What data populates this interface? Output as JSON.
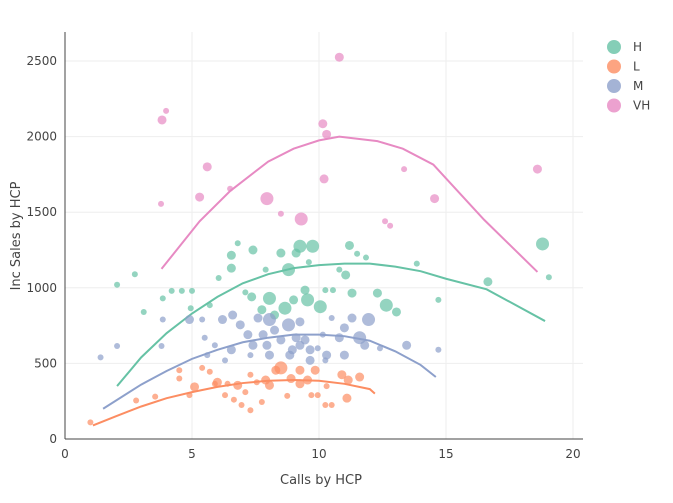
{
  "chart_data": {
    "type": "scatter",
    "xlabel": "Calls by HCP",
    "ylabel": "Inc Sales by HCP",
    "xlim": [
      0,
      20.4
    ],
    "ylim": [
      0,
      2700
    ],
    "xticks": [
      0,
      5,
      10,
      15,
      20
    ],
    "yticks": [
      0,
      500,
      1000,
      1500,
      2000,
      2500
    ],
    "grid": true,
    "legend_position": "top-right",
    "series": [
      {
        "name": "H",
        "color": "#66c2a5",
        "points": [
          [
            2.05,
            1020,
            1
          ],
          [
            2.75,
            1090,
            1
          ],
          [
            3.1,
            840,
            1
          ],
          [
            3.85,
            930,
            1
          ],
          [
            4.2,
            980,
            1
          ],
          [
            4.6,
            980,
            1
          ],
          [
            4.95,
            865,
            1
          ],
          [
            5,
            980,
            1
          ],
          [
            5.7,
            885,
            1
          ],
          [
            6.05,
            1065,
            1
          ],
          [
            6.55,
            1215,
            2
          ],
          [
            6.55,
            1130,
            2
          ],
          [
            6.8,
            1295,
            1
          ],
          [
            7.1,
            970,
            1
          ],
          [
            7.4,
            1250,
            2
          ],
          [
            7.35,
            940,
            2
          ],
          [
            7.9,
            1120,
            1
          ],
          [
            8.05,
            930,
            3
          ],
          [
            8.5,
            1230,
            2
          ],
          [
            8.8,
            1120,
            3
          ],
          [
            9.1,
            1230,
            2
          ],
          [
            9.25,
            1275,
            3
          ],
          [
            9.6,
            1170,
            1
          ],
          [
            9.75,
            1275,
            3
          ],
          [
            9.45,
            985,
            2
          ],
          [
            9.55,
            920,
            3
          ],
          [
            8.66,
            865,
            3
          ],
          [
            9,
            920,
            2
          ],
          [
            10.05,
            875,
            3
          ],
          [
            10.25,
            985,
            1
          ],
          [
            10.55,
            985,
            1
          ],
          [
            10.8,
            1120,
            1
          ],
          [
            11.05,
            1085,
            2
          ],
          [
            11.2,
            1280,
            2
          ],
          [
            11.3,
            965,
            2
          ],
          [
            11.5,
            1225,
            1
          ],
          [
            11.85,
            1200,
            1
          ],
          [
            12.3,
            965,
            2
          ],
          [
            12.65,
            885,
            3
          ],
          [
            13.05,
            840,
            2
          ],
          [
            13.85,
            1160,
            1
          ],
          [
            14.7,
            920,
            1
          ],
          [
            16.65,
            1040,
            2
          ],
          [
            18.8,
            1290,
            3
          ],
          [
            19.05,
            1070,
            1
          ],
          [
            7.75,
            855,
            2
          ],
          [
            8.25,
            820,
            2
          ]
        ],
        "fit": [
          [
            2.05,
            350
          ],
          [
            3,
            540
          ],
          [
            4,
            700
          ],
          [
            5,
            830
          ],
          [
            6,
            940
          ],
          [
            7,
            1030
          ],
          [
            8,
            1090
          ],
          [
            9,
            1130
          ],
          [
            10,
            1150
          ],
          [
            11,
            1160
          ],
          [
            12,
            1160
          ],
          [
            13,
            1140
          ],
          [
            14,
            1110
          ],
          [
            15,
            1060
          ],
          [
            16.6,
            990
          ],
          [
            18.9,
            780
          ]
        ]
      },
      {
        "name": "L",
        "color": "#fc8d62",
        "points": [
          [
            1.0,
            110,
            1
          ],
          [
            2.8,
            255,
            1
          ],
          [
            3.55,
            280,
            1
          ],
          [
            4.5,
            400,
            1
          ],
          [
            4.5,
            455,
            1
          ],
          [
            5.1,
            345,
            2
          ],
          [
            4.9,
            290,
            1
          ],
          [
            5.4,
            470,
            1
          ],
          [
            5.7,
            445,
            1
          ],
          [
            6,
            375,
            2
          ],
          [
            6.3,
            290,
            1
          ],
          [
            6.65,
            260,
            1
          ],
          [
            6.4,
            365,
            1
          ],
          [
            6.8,
            355,
            2
          ],
          [
            6.95,
            225,
            1
          ],
          [
            7.1,
            310,
            1
          ],
          [
            7.3,
            190,
            1
          ],
          [
            7.55,
            375,
            1
          ],
          [
            7.75,
            245,
            1
          ],
          [
            8.05,
            355,
            2
          ],
          [
            8.3,
            455,
            2
          ],
          [
            8.5,
            470,
            3
          ],
          [
            8.9,
            400,
            2
          ],
          [
            9.25,
            455,
            2
          ],
          [
            9.25,
            365,
            2
          ],
          [
            9.55,
            390,
            2
          ],
          [
            9.85,
            455,
            2
          ],
          [
            9.95,
            290,
            1
          ],
          [
            10.25,
            225,
            1
          ],
          [
            10.3,
            350,
            1
          ],
          [
            10.9,
            425,
            2
          ],
          [
            11.15,
            390,
            2
          ],
          [
            11.6,
            410,
            2
          ],
          [
            11.1,
            270,
            2
          ],
          [
            10.5,
            225,
            1
          ],
          [
            9.7,
            290,
            1
          ],
          [
            8.75,
            285,
            1
          ],
          [
            7.9,
            390,
            2
          ],
          [
            7.3,
            425,
            1
          ],
          [
            5.9,
            365,
            1
          ]
        ],
        "fit": [
          [
            1.1,
            90
          ],
          [
            2,
            150
          ],
          [
            3,
            215
          ],
          [
            4,
            270
          ],
          [
            5,
            310
          ],
          [
            6,
            345
          ],
          [
            7,
            370
          ],
          [
            8,
            385
          ],
          [
            9,
            390
          ],
          [
            10,
            385
          ],
          [
            11,
            365
          ],
          [
            12,
            330
          ],
          [
            12.2,
            300
          ]
        ]
      },
      {
        "name": "M",
        "color": "#8da0cb",
        "points": [
          [
            1.4,
            540,
            1
          ],
          [
            2.05,
            615,
            1
          ],
          [
            3.8,
            615,
            1
          ],
          [
            3.85,
            790,
            1
          ],
          [
            4.9,
            790,
            2
          ],
          [
            5.4,
            790,
            1
          ],
          [
            5.6,
            555,
            1
          ],
          [
            6.2,
            790,
            2
          ],
          [
            6.6,
            820,
            2
          ],
          [
            6.55,
            590,
            2
          ],
          [
            6.9,
            755,
            2
          ],
          [
            7.2,
            690,
            2
          ],
          [
            7.4,
            620,
            2
          ],
          [
            7.6,
            800,
            2
          ],
          [
            7.8,
            690,
            2
          ],
          [
            8.05,
            790,
            3
          ],
          [
            8.25,
            720,
            2
          ],
          [
            8.5,
            655,
            2
          ],
          [
            8.8,
            755,
            3
          ],
          [
            9.1,
            670,
            2
          ],
          [
            9.25,
            775,
            2
          ],
          [
            9.45,
            655,
            2
          ],
          [
            8.95,
            590,
            2
          ],
          [
            9.65,
            590,
            2
          ],
          [
            9.95,
            600,
            1
          ],
          [
            10.15,
            690,
            1
          ],
          [
            10.5,
            800,
            1
          ],
          [
            10.8,
            670,
            2
          ],
          [
            11,
            735,
            2
          ],
          [
            11.3,
            800,
            2
          ],
          [
            11.6,
            670,
            3
          ],
          [
            11.8,
            620,
            2
          ],
          [
            11.95,
            790,
            3
          ],
          [
            12.4,
            600,
            1
          ],
          [
            13.45,
            620,
            2
          ],
          [
            14.7,
            590,
            1
          ],
          [
            6.3,
            520,
            1
          ],
          [
            7.3,
            555,
            1
          ],
          [
            8.05,
            555,
            2
          ],
          [
            8.85,
            555,
            2
          ],
          [
            9.65,
            520,
            2
          ],
          [
            5.5,
            670,
            1
          ],
          [
            5.9,
            620,
            1
          ],
          [
            7.95,
            620,
            2
          ],
          [
            9.25,
            620,
            2
          ],
          [
            10.3,
            555,
            2
          ],
          [
            11,
            555,
            2
          ],
          [
            10.25,
            520,
            1
          ]
        ],
        "fit": [
          [
            1.5,
            200
          ],
          [
            3,
            360
          ],
          [
            4,
            450
          ],
          [
            5,
            530
          ],
          [
            6,
            590
          ],
          [
            7,
            640
          ],
          [
            8,
            670
          ],
          [
            9,
            690
          ],
          [
            10,
            690
          ],
          [
            11,
            680
          ],
          [
            12,
            650
          ],
          [
            13,
            580
          ],
          [
            14,
            490
          ],
          [
            14.6,
            410
          ]
        ]
      },
      {
        "name": "VH",
        "color": "#e78ac3",
        "points": [
          [
            3.82,
            2110,
            2
          ],
          [
            3.98,
            2170,
            1
          ],
          [
            3.78,
            1555,
            1
          ],
          [
            5.6,
            1800,
            2
          ],
          [
            5.3,
            1600,
            2
          ],
          [
            6.5,
            1655,
            1
          ],
          [
            7.95,
            1590,
            3
          ],
          [
            8.5,
            1490,
            1
          ],
          [
            9.3,
            1455,
            3
          ],
          [
            10.15,
            2085,
            2
          ],
          [
            10.3,
            2015,
            2
          ],
          [
            10.2,
            1720,
            2
          ],
          [
            10.8,
            2525,
            2
          ],
          [
            12.6,
            1440,
            1
          ],
          [
            12.8,
            1410,
            1
          ],
          [
            13.35,
            1785,
            1
          ],
          [
            14.55,
            1590,
            2
          ],
          [
            18.6,
            1785,
            2
          ]
        ],
        "fit": [
          [
            3.8,
            1125
          ],
          [
            5.3,
            1440
          ],
          [
            6.5,
            1640
          ],
          [
            8,
            1835
          ],
          [
            9,
            1920
          ],
          [
            10,
            1975
          ],
          [
            10.8,
            2000
          ],
          [
            12.3,
            1970
          ],
          [
            13.3,
            1920
          ],
          [
            14.5,
            1815
          ],
          [
            16.5,
            1450
          ],
          [
            18.6,
            1105
          ]
        ]
      }
    ]
  }
}
